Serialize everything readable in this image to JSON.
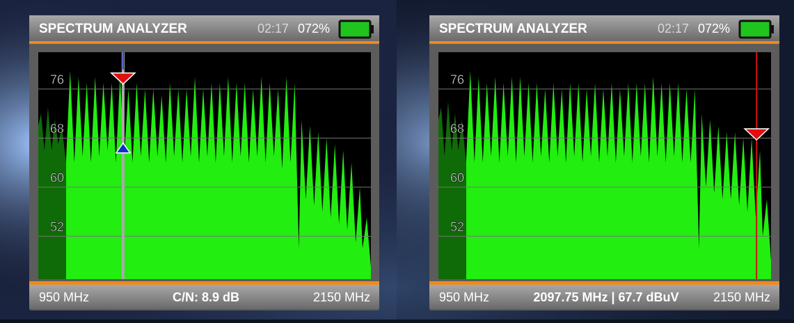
{
  "screens": [
    {
      "title": "SPECTRUM ANALYZER",
      "time": "02:17",
      "battery": "072%",
      "xlim": [
        950,
        2150
      ],
      "ylim": [
        45,
        82
      ],
      "yticks": [
        76,
        68,
        60,
        52
      ],
      "spectrum": {
        "x": [
          950,
          960,
          972,
          985,
          998,
          1010,
          1022,
          1035,
          1050,
          1065,
          1080,
          1095,
          1110,
          1125,
          1140,
          1155,
          1170,
          1185,
          1200,
          1215,
          1230,
          1245,
          1260,
          1275,
          1290,
          1305,
          1320,
          1335,
          1350,
          1365,
          1380,
          1395,
          1410,
          1425,
          1440,
          1455,
          1470,
          1485,
          1500,
          1515,
          1530,
          1545,
          1560,
          1575,
          1590,
          1605,
          1620,
          1635,
          1650,
          1665,
          1680,
          1695,
          1710,
          1725,
          1740,
          1755,
          1770,
          1785,
          1800,
          1815,
          1830,
          1845,
          1860,
          1875,
          1890,
          1900,
          1915,
          1930,
          1945,
          1960,
          1975,
          1990,
          2005,
          2020,
          2035,
          2050,
          2065,
          2080,
          2095,
          2110,
          2120,
          2135,
          2150
        ],
        "values": [
          70,
          72,
          66,
          73,
          66,
          71,
          67,
          70,
          64,
          79,
          64,
          78,
          65,
          77,
          64,
          78,
          65,
          77,
          66,
          77,
          64,
          78,
          65,
          76,
          64,
          77,
          65,
          76,
          64,
          76,
          65,
          75,
          64,
          77,
          65,
          76,
          64,
          76,
          65,
          78,
          64,
          76,
          65,
          77,
          64,
          77,
          65,
          78,
          64,
          77,
          65,
          77,
          64,
          76,
          65,
          78,
          64,
          77,
          65,
          76,
          63,
          78,
          64,
          77,
          50,
          71,
          58,
          70,
          57,
          69,
          56,
          68,
          55,
          67,
          54,
          66,
          53,
          64,
          51,
          60,
          50,
          55,
          47
        ]
      },
      "marker": {
        "x": 1256,
        "level": 76.8,
        "noise": 66.5
      },
      "footer": {
        "left": "950 MHz",
        "center": "C/N: 8.9 dB",
        "right": "2150 MHz"
      }
    },
    {
      "title": "SPECTRUM ANALYZER",
      "time": "02:17",
      "battery": "072%",
      "xlim": [
        950,
        2150
      ],
      "ylim": [
        45,
        82
      ],
      "yticks": [
        76,
        68,
        60,
        52
      ],
      "spectrum": {
        "x": [
          950,
          960,
          972,
          985,
          998,
          1010,
          1022,
          1035,
          1050,
          1065,
          1080,
          1095,
          1110,
          1125,
          1140,
          1155,
          1170,
          1185,
          1200,
          1215,
          1230,
          1245,
          1260,
          1275,
          1290,
          1305,
          1320,
          1335,
          1350,
          1365,
          1380,
          1395,
          1410,
          1425,
          1440,
          1455,
          1470,
          1485,
          1500,
          1515,
          1530,
          1545,
          1560,
          1575,
          1590,
          1605,
          1620,
          1635,
          1650,
          1665,
          1680,
          1695,
          1710,
          1725,
          1740,
          1755,
          1770,
          1785,
          1800,
          1815,
          1830,
          1845,
          1860,
          1875,
          1890,
          1900,
          1915,
          1930,
          1945,
          1960,
          1975,
          1990,
          2005,
          2020,
          2035,
          2050,
          2065,
          2080,
          2095,
          2110,
          2120,
          2135,
          2150
        ],
        "values": [
          71,
          73,
          65,
          74,
          66,
          72,
          66,
          71,
          64,
          79,
          64,
          78,
          64,
          77,
          65,
          78,
          64,
          77,
          65,
          78,
          64,
          78,
          65,
          77,
          64,
          77,
          65,
          76,
          64,
          77,
          65,
          76,
          64,
          77,
          65,
          77,
          64,
          76,
          65,
          77,
          64,
          76,
          65,
          77,
          64,
          76,
          65,
          77,
          64,
          77,
          65,
          77,
          64,
          78,
          65,
          77,
          64,
          77,
          65,
          77,
          64,
          76,
          64,
          76,
          50,
          72,
          60,
          71,
          59,
          70,
          58,
          69,
          58,
          69,
          57,
          68,
          56,
          68,
          55,
          66,
          52,
          58,
          48
        ]
      },
      "marker": {
        "x": 2097.75,
        "level": 67.7
      },
      "footer": {
        "left": "950 MHz",
        "center": "2097.75 MHz | 67.7 dBuV",
        "right": "2150 MHz"
      }
    }
  ]
}
